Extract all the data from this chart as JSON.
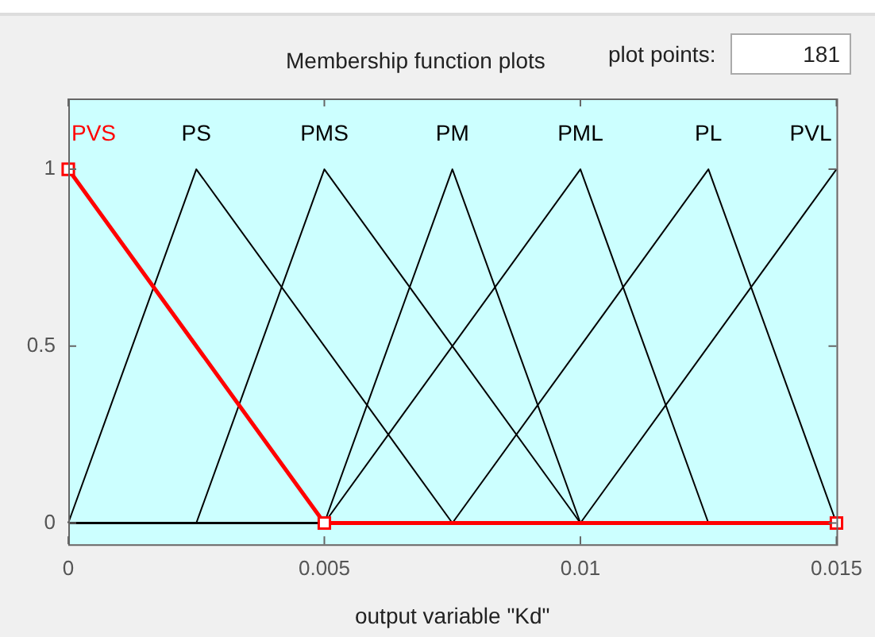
{
  "chart_data": {
    "type": "line",
    "title": "Membership function plots",
    "xlabel": "output variable \"Kd\"",
    "xlim": [
      0,
      0.015
    ],
    "xticks": [
      0,
      0.005,
      0.01,
      0.015
    ],
    "ylim": [
      -0.06,
      1.2
    ],
    "yticks": [
      0,
      0.5,
      1
    ],
    "grid": false,
    "legend": false,
    "annotations": [
      "plot points:",
      "181"
    ],
    "series": [
      {
        "name": "PVS",
        "color": "#ff0000",
        "x": [
          0,
          0.005,
          0.015
        ],
        "values": [
          1,
          0,
          0
        ],
        "marker": "square"
      },
      {
        "name": "PS",
        "color": "#000000",
        "x": [
          0,
          0.0025,
          0.0075,
          0.015
        ],
        "values": [
          0,
          1,
          0,
          0
        ]
      },
      {
        "name": "PMS",
        "color": "#000000",
        "x": [
          0,
          0.0025,
          0.005,
          0.01,
          0.015
        ],
        "values": [
          0,
          0,
          1,
          0,
          0
        ]
      },
      {
        "name": "PM",
        "color": "#000000",
        "x": [
          0,
          0.005,
          0.0075,
          0.01,
          0.015
        ],
        "values": [
          0,
          0,
          1,
          0,
          0
        ]
      },
      {
        "name": "PML",
        "color": "#000000",
        "x": [
          0,
          0.005,
          0.01,
          0.0125,
          0.015
        ],
        "values": [
          0,
          0,
          1,
          0,
          0
        ]
      },
      {
        "name": "PL",
        "color": "#000000",
        "x": [
          0,
          0.0075,
          0.0125,
          0.015
        ],
        "values": [
          0,
          0,
          1,
          0
        ]
      },
      {
        "name": "PVL",
        "color": "#000000",
        "x": [
          0,
          0.01,
          0.015
        ],
        "values": [
          0,
          0,
          1
        ]
      }
    ]
  }
}
